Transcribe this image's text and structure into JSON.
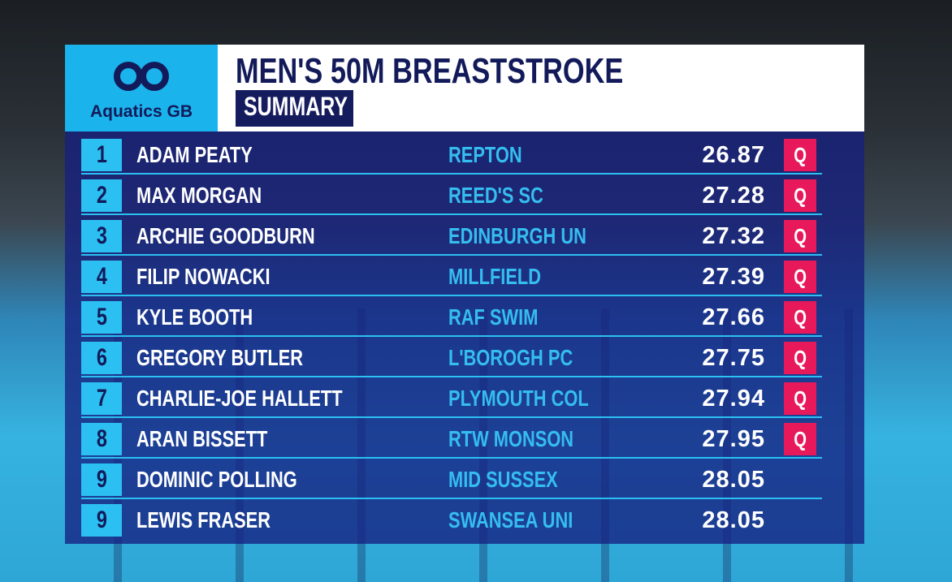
{
  "header": {
    "logo_text": "Aquatics GB",
    "title": "MEN'S 50M BREASTSTROKE",
    "subtitle": "SUMMARY"
  },
  "table": {
    "rows": [
      {
        "rank": 1,
        "name": "ADAM PEATY",
        "club": "REPTON",
        "time": "26.87",
        "qualifier": "Q"
      },
      {
        "rank": 2,
        "name": "MAX MORGAN",
        "club": "REED'S SC",
        "time": "27.28",
        "qualifier": "Q"
      },
      {
        "rank": 3,
        "name": "ARCHIE GOODBURN",
        "club": "EDINBURGH UN",
        "time": "27.32",
        "qualifier": "Q"
      },
      {
        "rank": 4,
        "name": "FILIP NOWACKI",
        "club": "MILLFIELD",
        "time": "27.39",
        "qualifier": "Q"
      },
      {
        "rank": 5,
        "name": "KYLE BOOTH",
        "club": "RAF SWIM",
        "time": "27.66",
        "qualifier": "Q"
      },
      {
        "rank": 6,
        "name": "GREGORY BUTLER",
        "club": "L'BOROGH PC",
        "time": "27.75",
        "qualifier": "Q"
      },
      {
        "rank": 7,
        "name": "CHARLIE-JOE HALLETT",
        "club": "PLYMOUTH COL",
        "time": "27.94",
        "qualifier": "Q"
      },
      {
        "rank": 8,
        "name": "ARAN BISSETT",
        "club": "RTW MONSON",
        "time": "27.95",
        "qualifier": "Q"
      },
      {
        "rank": 9,
        "name": "DOMINIC POLLING",
        "club": "MID SUSSEX",
        "time": "28.05"
      },
      {
        "rank": 9,
        "name": "LEWIS FRASER",
        "club": "SWANSEA UNI",
        "time": "28.05"
      }
    ]
  }
}
